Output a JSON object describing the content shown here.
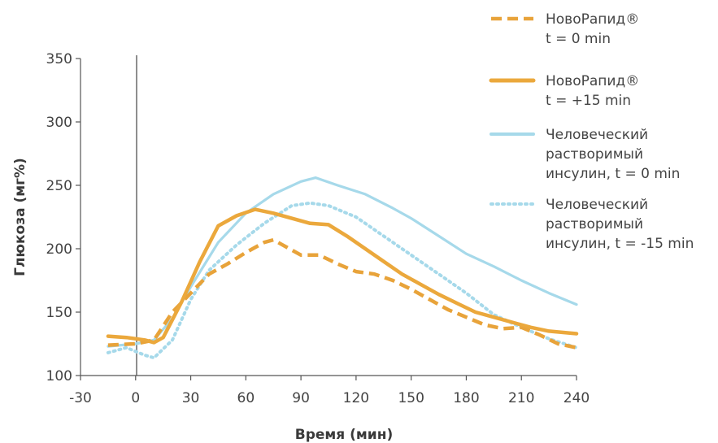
{
  "chart_data": {
    "type": "line",
    "xlabel": "Время (мин)",
    "ylabel": "Глюкоза (мг%)",
    "xlim": [
      -30,
      240
    ],
    "ylim": [
      100,
      350
    ],
    "xticks": [
      -30,
      0,
      30,
      60,
      90,
      120,
      150,
      180,
      210,
      240
    ],
    "yticks": [
      100,
      150,
      200,
      250,
      300,
      350
    ],
    "legend_position": "top-right",
    "series": [
      {
        "name_lines": [
          "НовоРапид®",
          "t = 0 min"
        ],
        "color": "#e8a33a",
        "style": "dashed",
        "points": [
          [
            -15,
            124
          ],
          [
            0,
            125
          ],
          [
            10,
            128
          ],
          [
            20,
            150
          ],
          [
            30,
            165
          ],
          [
            40,
            180
          ],
          [
            50,
            188
          ],
          [
            60,
            197
          ],
          [
            70,
            205
          ],
          [
            75,
            207
          ],
          [
            80,
            203
          ],
          [
            90,
            195
          ],
          [
            100,
            195
          ],
          [
            110,
            188
          ],
          [
            120,
            182
          ],
          [
            130,
            180
          ],
          [
            140,
            175
          ],
          [
            150,
            168
          ],
          [
            160,
            160
          ],
          [
            170,
            152
          ],
          [
            180,
            146
          ],
          [
            190,
            140
          ],
          [
            200,
            137
          ],
          [
            210,
            138
          ],
          [
            220,
            132
          ],
          [
            230,
            125
          ],
          [
            240,
            122
          ]
        ]
      },
      {
        "name_lines": [
          "НовоРапид®",
          "t = +15 min"
        ],
        "color": "#eba83c",
        "style": "solid",
        "points": [
          [
            -15,
            131
          ],
          [
            -5,
            130
          ],
          [
            5,
            128
          ],
          [
            10,
            126
          ],
          [
            15,
            130
          ],
          [
            25,
            158
          ],
          [
            35,
            190
          ],
          [
            45,
            218
          ],
          [
            55,
            226
          ],
          [
            65,
            231
          ],
          [
            75,
            228
          ],
          [
            85,
            224
          ],
          [
            95,
            220
          ],
          [
            105,
            219
          ],
          [
            115,
            210
          ],
          [
            125,
            200
          ],
          [
            135,
            190
          ],
          [
            145,
            180
          ],
          [
            155,
            172
          ],
          [
            165,
            164
          ],
          [
            175,
            157
          ],
          [
            185,
            150
          ],
          [
            195,
            146
          ],
          [
            205,
            142
          ],
          [
            215,
            138
          ],
          [
            225,
            135
          ],
          [
            240,
            133
          ]
        ]
      },
      {
        "name_lines": [
          "Человеческий",
          "растворимый",
          "инсулин, t = 0 min"
        ],
        "color": "#a6d9ea",
        "style": "solid",
        "points": [
          [
            -15,
            123
          ],
          [
            0,
            125
          ],
          [
            10,
            128
          ],
          [
            20,
            145
          ],
          [
            30,
            170
          ],
          [
            45,
            205
          ],
          [
            60,
            228
          ],
          [
            75,
            243
          ],
          [
            90,
            253
          ],
          [
            98,
            256
          ],
          [
            110,
            250
          ],
          [
            125,
            243
          ],
          [
            140,
            232
          ],
          [
            150,
            224
          ],
          [
            165,
            210
          ],
          [
            180,
            196
          ],
          [
            195,
            186
          ],
          [
            210,
            175
          ],
          [
            225,
            165
          ],
          [
            240,
            156
          ]
        ]
      },
      {
        "name_lines": [
          "Человеческий",
          "растворимый",
          "инсулин, t = -15 min"
        ],
        "color": "#a6d9ea",
        "style": "dotted",
        "points": [
          [
            -15,
            118
          ],
          [
            -5,
            122
          ],
          [
            5,
            116
          ],
          [
            10,
            114
          ],
          [
            20,
            128
          ],
          [
            30,
            160
          ],
          [
            40,
            183
          ],
          [
            55,
            203
          ],
          [
            70,
            220
          ],
          [
            85,
            234
          ],
          [
            95,
            236
          ],
          [
            105,
            234
          ],
          [
            120,
            225
          ],
          [
            135,
            210
          ],
          [
            150,
            195
          ],
          [
            165,
            180
          ],
          [
            180,
            165
          ],
          [
            195,
            148
          ],
          [
            210,
            138
          ],
          [
            225,
            129
          ],
          [
            240,
            122
          ]
        ]
      }
    ]
  }
}
